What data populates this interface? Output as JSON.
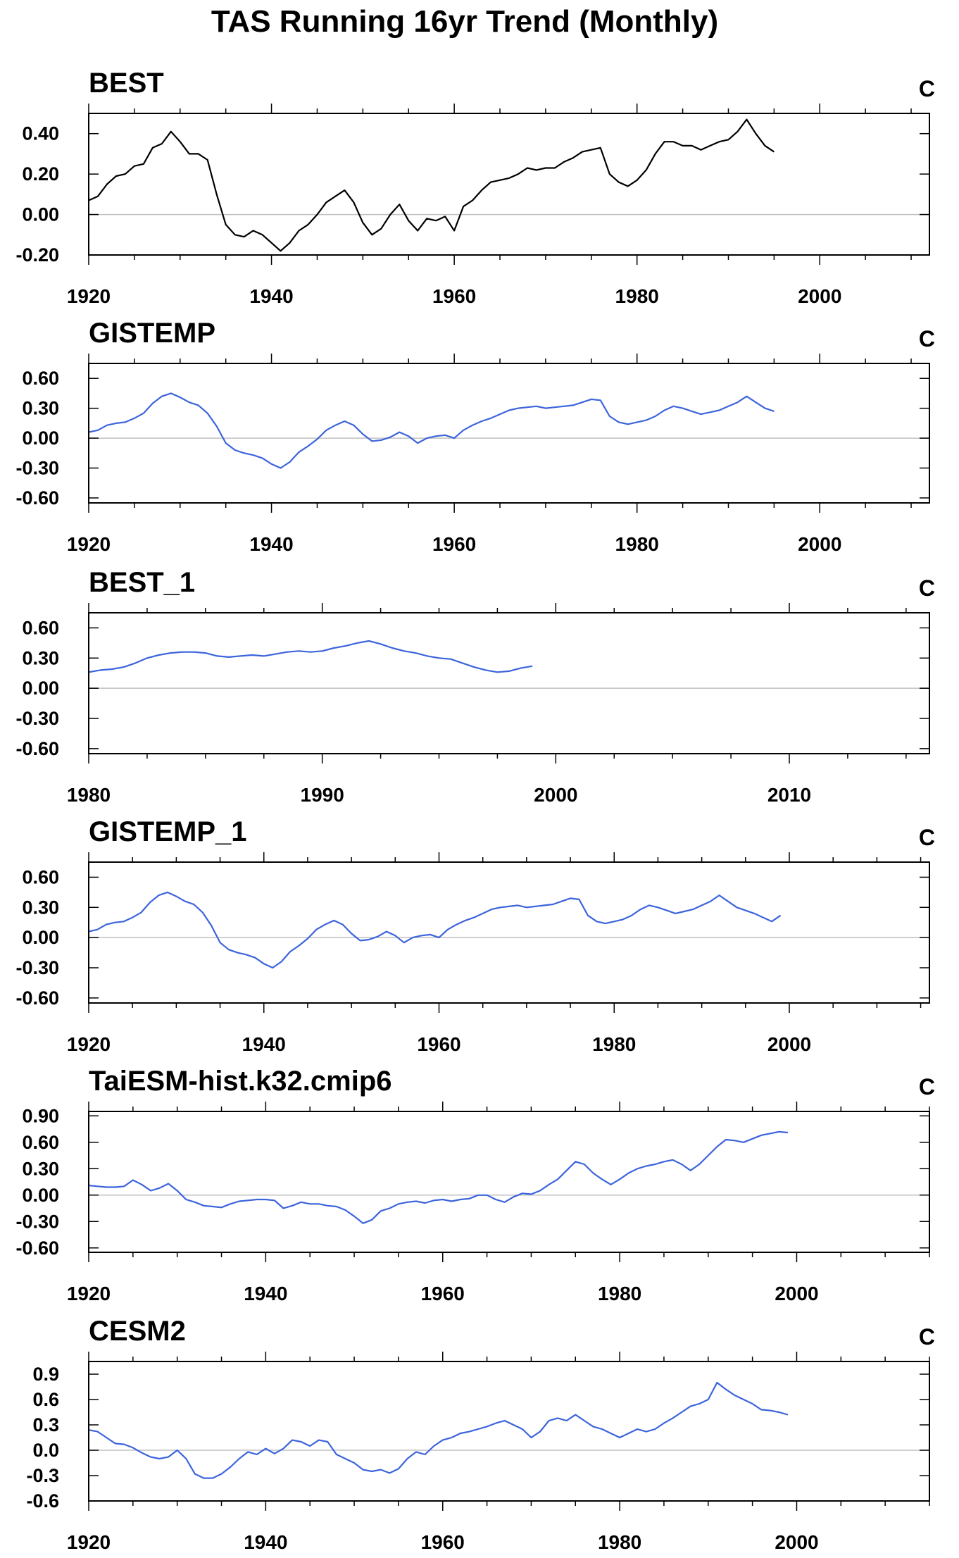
{
  "title": "TAS Running 16yr Trend (Monthly)",
  "chart_data": [
    {
      "type": "line",
      "title": "BEST",
      "unit": "C",
      "color": "#000000",
      "xlim": [
        1920,
        2012
      ],
      "ylim": [
        -0.2,
        0.5
      ],
      "xticks": [
        "1920",
        "1940",
        "1960",
        "1980",
        "2000"
      ],
      "yticks": [
        "0.40",
        "0.20",
        "0.00",
        "-0.20"
      ],
      "ytick_values": [
        0.4,
        0.2,
        0.0,
        -0.2
      ],
      "x": [
        1920,
        1921,
        1922,
        1923,
        1924,
        1925,
        1926,
        1927,
        1928,
        1929,
        1930,
        1931,
        1932,
        1933,
        1934,
        1935,
        1936,
        1937,
        1938,
        1939,
        1940,
        1941,
        1942,
        1943,
        1944,
        1945,
        1946,
        1947,
        1948,
        1949,
        1950,
        1951,
        1952,
        1953,
        1954,
        1955,
        1956,
        1957,
        1958,
        1959,
        1960,
        1961,
        1962,
        1963,
        1964,
        1965,
        1966,
        1967,
        1968,
        1969,
        1970,
        1971,
        1972,
        1973,
        1974,
        1975,
        1976,
        1977,
        1978,
        1979,
        1980,
        1981,
        1982,
        1983,
        1984,
        1985,
        1986,
        1987,
        1988,
        1989,
        1990,
        1991,
        1992,
        1993,
        1994,
        1995
      ],
      "values": [
        0.07,
        0.09,
        0.15,
        0.19,
        0.2,
        0.24,
        0.25,
        0.33,
        0.35,
        0.41,
        0.36,
        0.3,
        0.3,
        0.27,
        0.1,
        -0.05,
        -0.1,
        -0.11,
        -0.08,
        -0.1,
        -0.14,
        -0.18,
        -0.14,
        -0.08,
        -0.05,
        0.0,
        0.06,
        0.09,
        0.12,
        0.06,
        -0.04,
        -0.1,
        -0.07,
        0.0,
        0.05,
        -0.03,
        -0.08,
        -0.02,
        -0.03,
        -0.01,
        -0.08,
        0.04,
        0.07,
        0.12,
        0.16,
        0.17,
        0.18,
        0.2,
        0.23,
        0.22,
        0.23,
        0.23,
        0.26,
        0.28,
        0.31,
        0.32,
        0.33,
        0.2,
        0.16,
        0.14,
        0.17,
        0.22,
        0.3,
        0.36,
        0.36,
        0.34,
        0.34,
        0.32,
        0.34,
        0.36,
        0.37,
        0.41,
        0.47,
        0.4,
        0.34,
        0.31
      ]
    },
    {
      "type": "line",
      "title": "GISTEMP",
      "unit": "C",
      "color": "#3c64dc",
      "xlim": [
        1920,
        2012
      ],
      "ylim": [
        -0.65,
        0.75
      ],
      "xticks": [
        "1920",
        "1940",
        "1960",
        "1980",
        "2000"
      ],
      "yticks": [
        "0.60",
        "0.30",
        "0.00",
        "-0.30",
        "-0.60"
      ],
      "ytick_values": [
        0.6,
        0.3,
        0.0,
        -0.3,
        -0.6
      ],
      "x": [
        1920,
        1921,
        1922,
        1923,
        1924,
        1925,
        1926,
        1927,
        1928,
        1929,
        1930,
        1931,
        1932,
        1933,
        1934,
        1935,
        1936,
        1937,
        1938,
        1939,
        1940,
        1941,
        1942,
        1943,
        1944,
        1945,
        1946,
        1947,
        1948,
        1949,
        1950,
        1951,
        1952,
        1953,
        1954,
        1955,
        1956,
        1957,
        1958,
        1959,
        1960,
        1961,
        1962,
        1963,
        1964,
        1965,
        1966,
        1967,
        1968,
        1969,
        1970,
        1971,
        1972,
        1973,
        1974,
        1975,
        1976,
        1977,
        1978,
        1979,
        1980,
        1981,
        1982,
        1983,
        1984,
        1985,
        1986,
        1987,
        1988,
        1989,
        1990,
        1991,
        1992,
        1993,
        1994,
        1995
      ],
      "values": [
        0.06,
        0.08,
        0.13,
        0.15,
        0.16,
        0.2,
        0.25,
        0.35,
        0.42,
        0.45,
        0.41,
        0.36,
        0.33,
        0.25,
        0.12,
        -0.05,
        -0.12,
        -0.15,
        -0.17,
        -0.2,
        -0.26,
        -0.3,
        -0.24,
        -0.14,
        -0.08,
        -0.01,
        0.08,
        0.13,
        0.17,
        0.13,
        0.04,
        -0.03,
        -0.02,
        0.01,
        0.06,
        0.02,
        -0.05,
        0.0,
        0.02,
        0.03,
        0.0,
        0.08,
        0.13,
        0.17,
        0.2,
        0.24,
        0.28,
        0.3,
        0.31,
        0.32,
        0.3,
        0.31,
        0.32,
        0.33,
        0.36,
        0.39,
        0.38,
        0.22,
        0.16,
        0.14,
        0.16,
        0.18,
        0.22,
        0.28,
        0.32,
        0.3,
        0.27,
        0.24,
        0.26,
        0.28,
        0.32,
        0.36,
        0.42,
        0.36,
        0.3,
        0.27
      ]
    },
    {
      "type": "line",
      "title": "BEST_1",
      "unit": "C",
      "color": "#3c64dc",
      "xlim": [
        1980,
        2016
      ],
      "ylim": [
        -0.65,
        0.75
      ],
      "xticks": [
        "1980",
        "1990",
        "2000",
        "2010"
      ],
      "yticks": [
        "0.60",
        "0.30",
        "0.00",
        "-0.30",
        "-0.60"
      ],
      "ytick_values": [
        0.6,
        0.3,
        0.0,
        -0.3,
        -0.6
      ],
      "x": [
        1980.0,
        1980.5,
        1981.0,
        1981.5,
        1982.0,
        1982.5,
        1983.0,
        1983.5,
        1984.0,
        1984.5,
        1985.0,
        1985.5,
        1986.0,
        1986.5,
        1987.0,
        1987.5,
        1988.0,
        1988.5,
        1989.0,
        1989.5,
        1990.0,
        1990.5,
        1991.0,
        1991.5,
        1992.0,
        1992.5,
        1993.0,
        1993.5,
        1994.0,
        1994.5,
        1995.0,
        1995.5,
        1996.0,
        1996.5,
        1997.0,
        1997.5,
        1998.0,
        1998.5,
        1999.0
      ],
      "values": [
        0.16,
        0.18,
        0.19,
        0.21,
        0.25,
        0.3,
        0.33,
        0.35,
        0.36,
        0.36,
        0.35,
        0.32,
        0.31,
        0.32,
        0.33,
        0.32,
        0.34,
        0.36,
        0.37,
        0.36,
        0.37,
        0.4,
        0.42,
        0.45,
        0.47,
        0.44,
        0.4,
        0.37,
        0.35,
        0.32,
        0.3,
        0.29,
        0.25,
        0.21,
        0.18,
        0.16,
        0.17,
        0.2,
        0.22
      ]
    },
    {
      "type": "line",
      "title": "GISTEMP_1",
      "unit": "C",
      "color": "#3c64dc",
      "xlim": [
        1920,
        2016
      ],
      "ylim": [
        -0.65,
        0.75
      ],
      "xticks": [
        "1920",
        "1940",
        "1960",
        "1980",
        "2000"
      ],
      "yticks": [
        "0.60",
        "0.30",
        "0.00",
        "-0.30",
        "-0.60"
      ],
      "ytick_values": [
        0.6,
        0.3,
        0.0,
        -0.3,
        -0.6
      ],
      "x": [
        1920,
        1921,
        1922,
        1923,
        1924,
        1925,
        1926,
        1927,
        1928,
        1929,
        1930,
        1931,
        1932,
        1933,
        1934,
        1935,
        1936,
        1937,
        1938,
        1939,
        1940,
        1941,
        1942,
        1943,
        1944,
        1945,
        1946,
        1947,
        1948,
        1949,
        1950,
        1951,
        1952,
        1953,
        1954,
        1955,
        1956,
        1957,
        1958,
        1959,
        1960,
        1961,
        1962,
        1963,
        1964,
        1965,
        1966,
        1967,
        1968,
        1969,
        1970,
        1971,
        1972,
        1973,
        1974,
        1975,
        1976,
        1977,
        1978,
        1979,
        1980,
        1981,
        1982,
        1983,
        1984,
        1985,
        1986,
        1987,
        1988,
        1989,
        1990,
        1991,
        1992,
        1993,
        1994,
        1995,
        1996,
        1997,
        1998,
        1999
      ],
      "values": [
        0.06,
        0.08,
        0.13,
        0.15,
        0.16,
        0.2,
        0.25,
        0.35,
        0.42,
        0.45,
        0.41,
        0.36,
        0.33,
        0.25,
        0.12,
        -0.05,
        -0.12,
        -0.15,
        -0.17,
        -0.2,
        -0.26,
        -0.3,
        -0.24,
        -0.14,
        -0.08,
        -0.01,
        0.08,
        0.13,
        0.17,
        0.13,
        0.04,
        -0.03,
        -0.02,
        0.01,
        0.06,
        0.02,
        -0.05,
        0.0,
        0.02,
        0.03,
        0.0,
        0.08,
        0.13,
        0.17,
        0.2,
        0.24,
        0.28,
        0.3,
        0.31,
        0.32,
        0.3,
        0.31,
        0.32,
        0.33,
        0.36,
        0.39,
        0.38,
        0.22,
        0.16,
        0.14,
        0.16,
        0.18,
        0.22,
        0.28,
        0.32,
        0.3,
        0.27,
        0.24,
        0.26,
        0.28,
        0.32,
        0.36,
        0.42,
        0.36,
        0.3,
        0.27,
        0.24,
        0.2,
        0.16,
        0.22
      ]
    },
    {
      "type": "line",
      "title": "TaiESM-hist.k32.cmip6",
      "unit": "C",
      "color": "#3c64dc",
      "xlim": [
        1920,
        2015
      ],
      "ylim": [
        -0.65,
        0.95
      ],
      "xticks": [
        "1920",
        "1940",
        "1960",
        "1980",
        "2000"
      ],
      "yticks": [
        "0.90",
        "0.60",
        "0.30",
        "0.00",
        "-0.30",
        "-0.60"
      ],
      "ytick_values": [
        0.9,
        0.6,
        0.3,
        0.0,
        -0.3,
        -0.6
      ],
      "x": [
        1920,
        1921,
        1922,
        1923,
        1924,
        1925,
        1926,
        1927,
        1928,
        1929,
        1930,
        1931,
        1932,
        1933,
        1934,
        1935,
        1936,
        1937,
        1938,
        1939,
        1940,
        1941,
        1942,
        1943,
        1944,
        1945,
        1946,
        1947,
        1948,
        1949,
        1950,
        1951,
        1952,
        1953,
        1954,
        1955,
        1956,
        1957,
        1958,
        1959,
        1960,
        1961,
        1962,
        1963,
        1964,
        1965,
        1966,
        1967,
        1968,
        1969,
        1970,
        1971,
        1972,
        1973,
        1974,
        1975,
        1976,
        1977,
        1978,
        1979,
        1980,
        1981,
        1982,
        1983,
        1984,
        1985,
        1986,
        1987,
        1988,
        1989,
        1990,
        1991,
        1992,
        1993,
        1994,
        1995,
        1996,
        1997,
        1998,
        1999
      ],
      "values": [
        0.11,
        0.1,
        0.09,
        0.09,
        0.1,
        0.17,
        0.12,
        0.05,
        0.08,
        0.13,
        0.05,
        -0.05,
        -0.08,
        -0.12,
        -0.13,
        -0.14,
        -0.1,
        -0.07,
        -0.06,
        -0.05,
        -0.05,
        -0.06,
        -0.15,
        -0.12,
        -0.08,
        -0.1,
        -0.1,
        -0.12,
        -0.13,
        -0.17,
        -0.24,
        -0.32,
        -0.28,
        -0.18,
        -0.15,
        -0.1,
        -0.08,
        -0.07,
        -0.09,
        -0.06,
        -0.05,
        -0.07,
        -0.05,
        -0.04,
        0.0,
        0.0,
        -0.05,
        -0.08,
        -0.02,
        0.02,
        0.01,
        0.05,
        0.12,
        0.18,
        0.28,
        0.38,
        0.35,
        0.25,
        0.18,
        0.12,
        0.18,
        0.25,
        0.3,
        0.33,
        0.35,
        0.38,
        0.4,
        0.35,
        0.28,
        0.35,
        0.45,
        0.55,
        0.63,
        0.62,
        0.6,
        0.64,
        0.68,
        0.7,
        0.72,
        0.71
      ]
    },
    {
      "type": "line",
      "title": "CESM2",
      "unit": "C",
      "color": "#3c64dc",
      "xlim": [
        1920,
        2015
      ],
      "ylim": [
        -0.6,
        1.05
      ],
      "xticks": [
        "1920",
        "1940",
        "1960",
        "1980",
        "2000"
      ],
      "yticks": [
        "0.9",
        "0.6",
        "0.3",
        "0.0",
        "-0.3",
        "-0.6"
      ],
      "ytick_values": [
        0.9,
        0.6,
        0.3,
        0.0,
        -0.3,
        -0.6
      ],
      "x": [
        1920,
        1921,
        1922,
        1923,
        1924,
        1925,
        1926,
        1927,
        1928,
        1929,
        1930,
        1931,
        1932,
        1933,
        1934,
        1935,
        1936,
        1937,
        1938,
        1939,
        1940,
        1941,
        1942,
        1943,
        1944,
        1945,
        1946,
        1947,
        1948,
        1949,
        1950,
        1951,
        1952,
        1953,
        1954,
        1955,
        1956,
        1957,
        1958,
        1959,
        1960,
        1961,
        1962,
        1963,
        1964,
        1965,
        1966,
        1967,
        1968,
        1969,
        1970,
        1971,
        1972,
        1973,
        1974,
        1975,
        1976,
        1977,
        1978,
        1979,
        1980,
        1981,
        1982,
        1983,
        1984,
        1985,
        1986,
        1987,
        1988,
        1989,
        1990,
        1991,
        1992,
        1993,
        1994,
        1995,
        1996,
        1997,
        1998,
        1999
      ],
      "values": [
        0.24,
        0.22,
        0.15,
        0.08,
        0.07,
        0.03,
        -0.03,
        -0.08,
        -0.1,
        -0.08,
        0.0,
        -0.1,
        -0.28,
        -0.33,
        -0.33,
        -0.28,
        -0.2,
        -0.1,
        -0.02,
        -0.05,
        0.02,
        -0.04,
        0.02,
        0.12,
        0.1,
        0.05,
        0.12,
        0.1,
        -0.05,
        -0.1,
        -0.15,
        -0.23,
        -0.25,
        -0.23,
        -0.27,
        -0.22,
        -0.1,
        -0.02,
        -0.05,
        0.05,
        0.12,
        0.15,
        0.2,
        0.22,
        0.25,
        0.28,
        0.32,
        0.35,
        0.3,
        0.25,
        0.15,
        0.22,
        0.35,
        0.38,
        0.35,
        0.42,
        0.35,
        0.28,
        0.25,
        0.2,
        0.15,
        0.2,
        0.25,
        0.22,
        0.25,
        0.32,
        0.38,
        0.45,
        0.52,
        0.55,
        0.6,
        0.8,
        0.72,
        0.65,
        0.6,
        0.55,
        0.48,
        0.47,
        0.45,
        0.42
      ]
    }
  ]
}
